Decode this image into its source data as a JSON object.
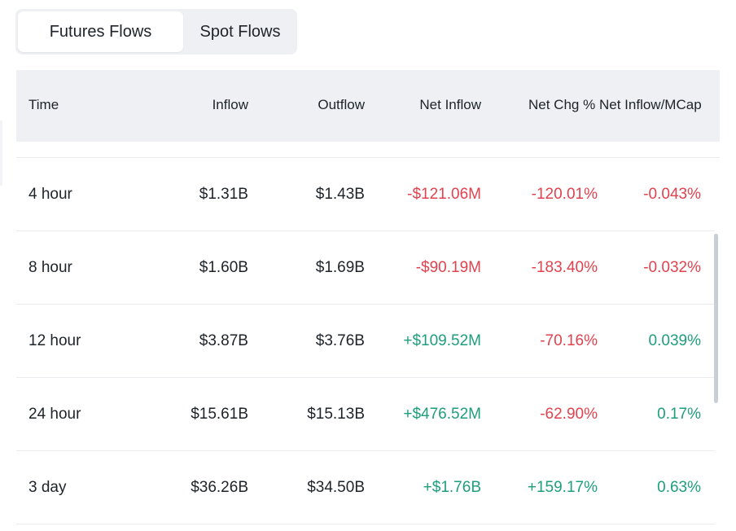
{
  "tabs": [
    {
      "label": "Futures Flows",
      "active": true
    },
    {
      "label": "Spot Flows",
      "active": false
    }
  ],
  "table": {
    "headers": {
      "time": "Time",
      "inflow": "Inflow",
      "outflow": "Outflow",
      "net_inflow": "Net Inflow",
      "net_chg": "Net Chg %",
      "net_inflow_mcap": "Net Inflow/MCap"
    },
    "rows": [
      {
        "time": "4 hour",
        "inflow": "$1.31B",
        "outflow": "$1.43B",
        "net_inflow": "-$121.06M",
        "net_chg": "-120.01%",
        "mcap": "-0.043%"
      },
      {
        "time": "8 hour",
        "inflow": "$1.60B",
        "outflow": "$1.69B",
        "net_inflow": "-$90.19M",
        "net_chg": "-183.40%",
        "mcap": "-0.032%"
      },
      {
        "time": "12 hour",
        "inflow": "$3.87B",
        "outflow": "$3.76B",
        "net_inflow": "+$109.52M",
        "net_chg": "-70.16%",
        "mcap": "0.039%"
      },
      {
        "time": "24 hour",
        "inflow": "$15.61B",
        "outflow": "$15.13B",
        "net_inflow": "+$476.52M",
        "net_chg": "-62.90%",
        "mcap": "0.17%"
      },
      {
        "time": "3 day",
        "inflow": "$36.26B",
        "outflow": "$34.50B",
        "net_inflow": "+$1.76B",
        "net_chg": "+159.17%",
        "mcap": "0.63%"
      }
    ]
  },
  "colors": {
    "positive": "#1e9e7c",
    "negative": "#e0424e",
    "header_bg": "#eef0f3"
  }
}
